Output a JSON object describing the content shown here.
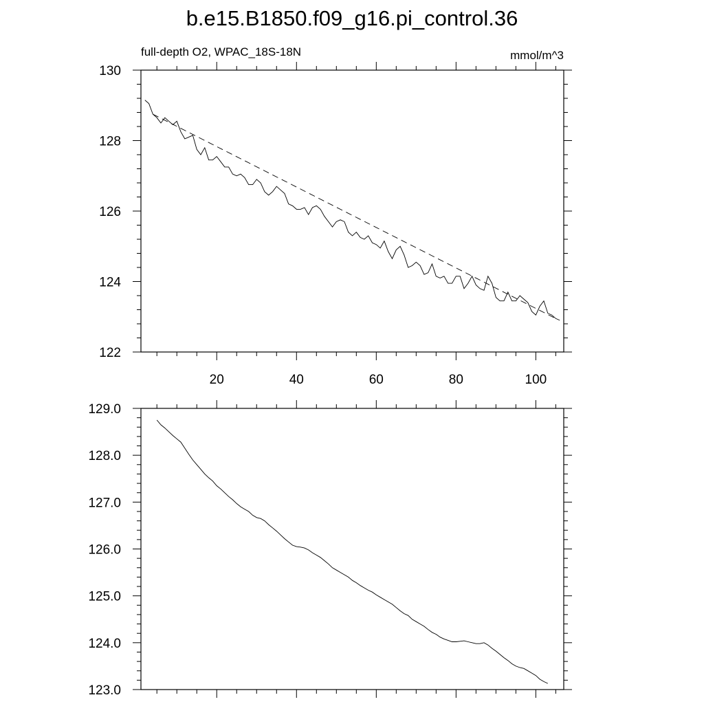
{
  "title": "b.e15.B1850.f09_g16.pi_control.36",
  "chart_data": [
    {
      "type": "line",
      "left_string": "full-depth O2, WPAC_18S-18N",
      "right_string": "mmol/m^3",
      "xlim": [
        1,
        107
      ],
      "ylim": [
        122,
        130
      ],
      "x_ticks": [
        20,
        40,
        60,
        80,
        100
      ],
      "x_tick_labels": [
        "20",
        "40",
        "60",
        "80",
        "100"
      ],
      "y_ticks": [
        122,
        124,
        126,
        128,
        130
      ],
      "y_tick_labels": [
        "122",
        "124",
        "126",
        "128",
        "130"
      ],
      "series": [
        {
          "style": "solid",
          "x": [
            2,
            3,
            4,
            5,
            6,
            7,
            8,
            9,
            10,
            11,
            12,
            13,
            14,
            15,
            16,
            17,
            18,
            19,
            20,
            21,
            22,
            23,
            24,
            25,
            26,
            27,
            28,
            29,
            30,
            31,
            32,
            33,
            34,
            35,
            36,
            37,
            38,
            39,
            40,
            41,
            42,
            43,
            44,
            45,
            46,
            47,
            48,
            49,
            50,
            51,
            52,
            53,
            54,
            55,
            56,
            57,
            58,
            59,
            60,
            61,
            62,
            63,
            64,
            65,
            66,
            67,
            68,
            69,
            70,
            71,
            72,
            73,
            74,
            75,
            76,
            77,
            78,
            79,
            80,
            81,
            82,
            83,
            84,
            85,
            86,
            87,
            88,
            89,
            90,
            91,
            92,
            93,
            94,
            95,
            96,
            97,
            98,
            99,
            100,
            101,
            102,
            103,
            104,
            105,
            106
          ],
          "y": [
            129.15,
            129.05,
            128.75,
            128.65,
            128.5,
            128.65,
            128.55,
            128.45,
            128.55,
            128.25,
            128.05,
            128.1,
            128.15,
            127.75,
            127.6,
            127.8,
            127.45,
            127.45,
            127.55,
            127.4,
            127.25,
            127.25,
            127.05,
            127.0,
            127.05,
            126.95,
            126.75,
            126.75,
            126.9,
            126.8,
            126.55,
            126.45,
            126.55,
            126.7,
            126.6,
            126.5,
            126.2,
            126.15,
            126.05,
            126.05,
            126.1,
            125.9,
            126.1,
            126.15,
            126.05,
            125.85,
            125.7,
            125.55,
            125.7,
            125.75,
            125.7,
            125.4,
            125.3,
            125.4,
            125.25,
            125.2,
            125.3,
            125.1,
            125.05,
            124.95,
            125.15,
            124.85,
            124.65,
            124.9,
            125.0,
            124.75,
            124.4,
            124.45,
            124.55,
            124.45,
            124.2,
            124.25,
            124.5,
            124.15,
            124.1,
            124.15,
            123.95,
            123.95,
            124.15,
            124.15,
            123.8,
            123.95,
            124.15,
            123.9,
            123.8,
            123.75,
            124.15,
            123.95,
            123.55,
            123.45,
            123.45,
            123.7,
            123.45,
            123.45,
            123.6,
            123.5,
            123.4,
            123.15,
            123.05,
            123.3,
            123.45,
            123.1,
            123.05,
            122.95,
            122.9
          ]
        },
        {
          "style": "dashed",
          "x": [
            4,
            105
          ],
          "y": [
            128.75,
            122.95
          ]
        }
      ]
    },
    {
      "type": "line",
      "xlim": [
        1,
        107
      ],
      "ylim": [
        123,
        129
      ],
      "x_ticks": [
        20,
        40,
        60,
        80,
        100
      ],
      "y_ticks": [
        123,
        124,
        125,
        126,
        127,
        128,
        129
      ],
      "y_tick_labels": [
        "123.0",
        "124.0",
        "125.0",
        "126.0",
        "127.0",
        "128.0",
        "129.0"
      ],
      "series": [
        {
          "style": "solid",
          "x": [
            5,
            6,
            7,
            8,
            9,
            10,
            11,
            12,
            13,
            14,
            15,
            16,
            17,
            18,
            19,
            20,
            21,
            22,
            23,
            24,
            25,
            26,
            27,
            28,
            29,
            30,
            31,
            32,
            33,
            34,
            35,
            36,
            37,
            38,
            39,
            40,
            41,
            42,
            43,
            44,
            45,
            46,
            47,
            48,
            49,
            50,
            51,
            52,
            53,
            54,
            55,
            56,
            57,
            58,
            59,
            60,
            61,
            62,
            63,
            64,
            65,
            66,
            67,
            68,
            69,
            70,
            71,
            72,
            73,
            74,
            75,
            76,
            77,
            78,
            79,
            80,
            81,
            82,
            83,
            84,
            85,
            86,
            87,
            88,
            89,
            90,
            91,
            92,
            93,
            94,
            95,
            96,
            97,
            98,
            99,
            100,
            101,
            102,
            103
          ],
          "y": [
            128.75,
            128.65,
            128.58,
            128.5,
            128.42,
            128.35,
            128.28,
            128.15,
            128.02,
            127.9,
            127.8,
            127.7,
            127.6,
            127.52,
            127.45,
            127.35,
            127.28,
            127.2,
            127.12,
            127.05,
            126.97,
            126.9,
            126.85,
            126.8,
            126.72,
            126.67,
            126.65,
            126.6,
            126.52,
            126.45,
            126.38,
            126.3,
            126.22,
            126.15,
            126.08,
            126.05,
            126.04,
            126.02,
            125.98,
            125.92,
            125.87,
            125.82,
            125.75,
            125.68,
            125.6,
            125.55,
            125.5,
            125.45,
            125.4,
            125.33,
            125.28,
            125.22,
            125.17,
            125.12,
            125.08,
            125.02,
            124.97,
            124.92,
            124.87,
            124.82,
            124.75,
            124.68,
            124.62,
            124.58,
            124.5,
            124.45,
            124.4,
            124.35,
            124.28,
            124.22,
            124.18,
            124.12,
            124.08,
            124.05,
            124.02,
            124.02,
            124.03,
            124.04,
            124.02,
            124.0,
            123.98,
            123.98,
            124.0,
            123.95,
            123.88,
            123.82,
            123.75,
            123.68,
            123.62,
            123.55,
            123.5,
            123.47,
            123.45,
            123.4,
            123.35,
            123.3,
            123.22,
            123.17,
            123.13
          ]
        }
      ]
    }
  ]
}
